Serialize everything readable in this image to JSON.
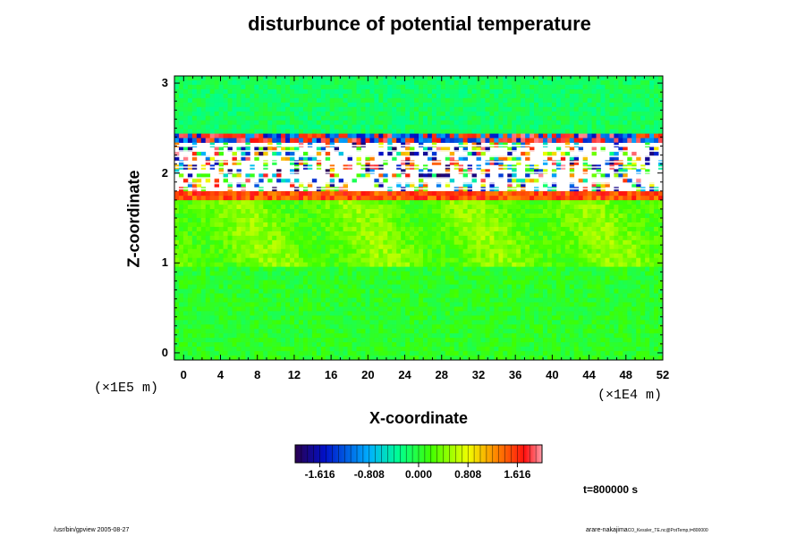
{
  "chart_data": {
    "type": "heatmap",
    "title": "disturbunce of potential temperature",
    "xlabel": "X-coordinate",
    "ylabel": "Z-coordinate",
    "x_unit": "(×1E4 m)",
    "y_unit": "(×1E5 m)",
    "xlim": [
      -1,
      52
    ],
    "ylim": [
      -0.08,
      3.08
    ],
    "x_ticks": [
      "0",
      "4",
      "8",
      "12",
      "16",
      "20",
      "24",
      "28",
      "32",
      "36",
      "40",
      "44",
      "48",
      "52"
    ],
    "y_ticks": [
      "0",
      "1",
      "2",
      "3"
    ],
    "colorbar": {
      "range": [
        -2.02,
        2.02
      ],
      "ticks": [
        "-1.616",
        "-0.808",
        "0.000",
        "0.808",
        "1.616"
      ],
      "colormap": "rainbow"
    },
    "time_label": "t=800000 s",
    "description_bands": [
      {
        "z_range": [
          0.0,
          0.95
        ],
        "value": 0.1
      },
      {
        "z_range": [
          0.95,
          1.7
        ],
        "value": 0.4
      },
      {
        "z_range": [
          1.7,
          1.8
        ],
        "value": 1.5
      },
      {
        "z_range": [
          1.8,
          2.35
        ],
        "value": "out-of-range"
      },
      {
        "z_range": [
          2.35,
          3.08
        ],
        "value": -0.1
      }
    ]
  },
  "footer": {
    "left": "/usr/bin/gpview 2005-08-27",
    "right_user": "arare-nakajima",
    "right_file": "CO_Kessler_TE.nc@PotTemp,t=800000"
  }
}
